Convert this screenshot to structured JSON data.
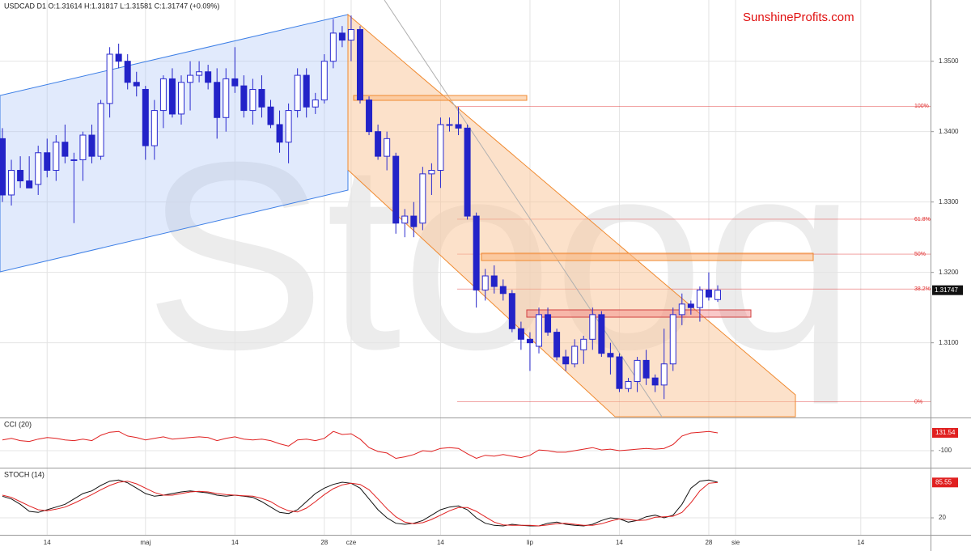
{
  "chart_data": {
    "type": "candlestick",
    "title": "USDCAD  D1  O:1.31614  H:1.31817  L:1.31581  C:1.31747  (+0.09%)",
    "watermark": "Stooq",
    "brand": "SunshineProfits.com",
    "categories": [
      null,
      null,
      null,
      null,
      null,
      "14",
      null,
      null,
      null,
      null,
      null,
      null,
      null,
      null,
      null,
      null,
      "maj",
      null,
      null,
      null,
      null,
      null,
      null,
      null,
      null,
      null,
      "14",
      null,
      null,
      null,
      null,
      null,
      null,
      null,
      null,
      null,
      "28",
      null,
      null,
      "cze",
      null,
      null,
      null,
      null,
      null,
      null,
      null,
      null,
      null,
      "14",
      null,
      null,
      null,
      null,
      null,
      null,
      null,
      null,
      null,
      "lip",
      null,
      null,
      null,
      null,
      null,
      null,
      null,
      null,
      null,
      "14",
      null,
      null,
      null,
      null,
      null,
      null,
      null,
      null,
      null,
      "28",
      null,
      null,
      "sie",
      null,
      null,
      null,
      null,
      null,
      null,
      null,
      null,
      null,
      null,
      null,
      null,
      null,
      "14",
      null,
      null,
      null,
      null,
      null,
      null,
      null
    ],
    "open": [
      1.339,
      1.331,
      1.3345,
      1.333,
      1.3325,
      1.337,
      1.3345,
      1.3385,
      1.336,
      1.336,
      1.3395,
      1.3365,
      1.344,
      1.351,
      1.35,
      1.347,
      1.346,
      1.338,
      1.343,
      1.3475,
      1.3425,
      1.347,
      1.348,
      1.3485,
      1.347,
      1.342,
      1.3475,
      1.3465,
      1.343,
      1.346,
      1.3435,
      1.341,
      1.3385,
      1.343,
      1.348,
      1.3435,
      1.3445,
      1.35,
      1.354,
      1.353,
      1.3545,
      1.3445,
      1.34,
      1.3365,
      1.3365,
      1.327,
      1.328,
      1.327,
      1.334,
      1.3345,
      1.341,
      1.341,
      1.3405,
      1.328,
      1.3175,
      1.3195,
      1.318,
      1.317,
      1.312,
      1.3105,
      1.3095,
      1.314,
      1.3115,
      1.308,
      1.307,
      1.309,
      1.3105,
      1.314,
      1.3085,
      1.308,
      1.3035,
      1.3045,
      1.3075,
      1.305,
      1.304,
      1.307,
      1.314,
      1.3155,
      1.315,
      1.3175,
      1.31614,
      null,
      null,
      null,
      null,
      null,
      null,
      null,
      null,
      null,
      null,
      null,
      null,
      null,
      null,
      null,
      null,
      null,
      null,
      null,
      null,
      null,
      null,
      null
    ],
    "high": [
      1.3405,
      1.336,
      1.3365,
      1.3365,
      1.338,
      1.339,
      1.3395,
      1.341,
      1.337,
      1.34,
      1.341,
      1.3445,
      1.352,
      1.3525,
      1.351,
      1.3485,
      1.3465,
      1.3445,
      1.348,
      1.349,
      1.348,
      1.35,
      1.35,
      1.3495,
      1.349,
      1.349,
      1.352,
      1.348,
      1.3475,
      1.348,
      1.3445,
      1.343,
      1.344,
      1.349,
      1.349,
      1.3455,
      1.351,
      1.356,
      1.355,
      1.3565,
      1.355,
      1.345,
      1.341,
      1.34,
      1.337,
      1.329,
      1.33,
      1.335,
      1.3355,
      1.342,
      1.342,
      1.3435,
      1.341,
      1.3285,
      1.3205,
      1.321,
      1.319,
      1.3175,
      1.313,
      1.3115,
      1.315,
      1.315,
      1.312,
      1.309,
      1.3105,
      1.311,
      1.315,
      1.3145,
      1.31,
      1.3085,
      1.305,
      1.308,
      1.309,
      1.3055,
      1.312,
      1.315,
      1.317,
      1.316,
      1.318,
      1.32,
      1.31817,
      null,
      null,
      null,
      null,
      null,
      null,
      null,
      null,
      null,
      null,
      null,
      null,
      null,
      null,
      null,
      null,
      null,
      null,
      null,
      null,
      null,
      null,
      null
    ],
    "low": [
      1.33,
      1.3295,
      1.332,
      1.332,
      1.331,
      1.3335,
      1.333,
      1.3355,
      1.327,
      1.333,
      1.3355,
      1.336,
      1.342,
      1.349,
      1.346,
      1.345,
      1.336,
      1.336,
      1.3405,
      1.342,
      1.341,
      1.343,
      1.347,
      1.346,
      1.339,
      1.34,
      1.3455,
      1.342,
      1.341,
      1.342,
      1.3405,
      1.337,
      1.3355,
      1.342,
      1.342,
      1.3425,
      1.344,
      1.349,
      1.352,
      1.35,
      1.344,
      1.3395,
      1.336,
      1.3345,
      1.3255,
      1.325,
      1.325,
      1.326,
      1.331,
      1.332,
      1.34,
      1.3395,
      1.3275,
      1.315,
      1.316,
      1.317,
      1.316,
      1.3115,
      1.309,
      1.306,
      1.3085,
      1.311,
      1.3075,
      1.306,
      1.3065,
      1.307,
      1.309,
      1.308,
      1.3055,
      1.303,
      1.303,
      1.303,
      1.304,
      1.303,
      1.302,
      1.306,
      1.3125,
      1.314,
      1.313,
      1.316,
      1.31581,
      null,
      null,
      null,
      null,
      null,
      null,
      null,
      null,
      null,
      null,
      null,
      null,
      null,
      null,
      null,
      null,
      null,
      null,
      null,
      null,
      null,
      null,
      null
    ],
    "close": [
      1.331,
      1.3345,
      1.333,
      1.332,
      1.337,
      1.3345,
      1.3385,
      1.3365,
      1.336,
      1.3395,
      1.3365,
      1.344,
      1.351,
      1.35,
      1.347,
      1.3465,
      1.338,
      1.343,
      1.3475,
      1.3425,
      1.347,
      1.348,
      1.3485,
      1.347,
      1.342,
      1.3475,
      1.3465,
      1.343,
      1.346,
      1.3435,
      1.341,
      1.3385,
      1.343,
      1.348,
      1.3435,
      1.3445,
      1.35,
      1.354,
      1.353,
      1.3545,
      1.3445,
      1.34,
      1.3365,
      1.339,
      1.327,
      1.328,
      1.3265,
      1.334,
      1.3345,
      1.341,
      1.341,
      1.3405,
      1.328,
      1.3175,
      1.3195,
      1.318,
      1.317,
      1.312,
      1.3105,
      1.31,
      1.314,
      1.3115,
      1.308,
      1.307,
      1.3095,
      1.3105,
      1.314,
      1.3085,
      1.308,
      1.3035,
      1.3045,
      1.3075,
      1.305,
      1.304,
      1.307,
      1.314,
      1.3155,
      1.315,
      1.3175,
      1.3165,
      1.31747,
      null,
      null,
      null,
      null,
      null,
      null,
      null,
      null,
      null,
      null,
      null,
      null,
      null,
      null,
      null,
      null,
      null,
      null,
      null,
      null,
      null,
      null,
      null
    ],
    "up_color": "#2b2bd0",
    "down_color": "#2323c8",
    "ylim": [
      1.2995,
      1.3587
    ],
    "yticks": [
      {
        "value": 1.35,
        "label": "1.3500"
      },
      {
        "value": 1.34,
        "label": "1.3400"
      },
      {
        "value": 1.33,
        "label": "1.3300"
      },
      {
        "value": 1.32,
        "label": "1.3200"
      },
      {
        "value": 1.31,
        "label": "1.3100"
      }
    ],
    "grid": true,
    "fib": {
      "high": 1.3436,
      "low": 1.3016,
      "color": "#e03030",
      "levels": [
        {
          "value": 100,
          "label": "100%"
        },
        {
          "value": 61.8,
          "label": "61.8%"
        },
        {
          "value": 50,
          "label": "50%"
        },
        {
          "value": 38.2,
          "label": "38.2%"
        },
        {
          "value": 0,
          "label": "0%"
        }
      ]
    },
    "indicators": [
      {
        "name": "CCI (20)",
        "ylim": [
          -310,
          310
        ],
        "yticks": [
          -100
        ],
        "series": [
          {
            "color": "#e02020",
            "values": [
              40,
              60,
              30,
              20,
              50,
              70,
              60,
              40,
              30,
              50,
              30,
              100,
              140,
              150,
              90,
              70,
              40,
              60,
              80,
              50,
              60,
              70,
              80,
              70,
              30,
              60,
              80,
              50,
              40,
              50,
              30,
              -10,
              -40,
              40,
              50,
              30,
              60,
              150,
              110,
              120,
              50,
              -60,
              -110,
              -130,
              -200,
              -180,
              -150,
              -100,
              -110,
              -70,
              -60,
              -70,
              -140,
              -200,
              -160,
              -170,
              -150,
              -170,
              -190,
              -160,
              -90,
              -100,
              -120,
              -120,
              -100,
              -80,
              -60,
              -90,
              -80,
              -100,
              -90,
              -80,
              -70,
              -80,
              -70,
              -20,
              90,
              130,
              140,
              150,
              131.54
            ]
          }
        ]
      },
      {
        "name": "STOCH (14)",
        "ylim": [
          -10,
          110
        ],
        "yticks": [
          20
        ],
        "series": [
          {
            "color": "#111111",
            "values": [
              60,
              55,
              45,
              32,
              30,
              35,
              40,
              45,
              55,
              65,
              70,
              80,
              88,
              90,
              85,
              75,
              65,
              60,
              62,
              65,
              68,
              70,
              68,
              66,
              62,
              60,
              62,
              60,
              58,
              50,
              40,
              30,
              28,
              35,
              50,
              65,
              75,
              82,
              86,
              84,
              75,
              55,
              35,
              20,
              10,
              8,
              10,
              15,
              25,
              35,
              40,
              42,
              35,
              20,
              10,
              6,
              5,
              8,
              6,
              5,
              5,
              10,
              12,
              8,
              6,
              5,
              8,
              15,
              20,
              18,
              12,
              15,
              22,
              25,
              20,
              25,
              45,
              75,
              88,
              90,
              86
            ]
          },
          {
            "color": "#e02020",
            "values": [
              62,
              58,
              50,
              42,
              35,
              33,
              36,
              40,
              47,
              55,
              63,
              72,
              80,
              86,
              88,
              83,
              75,
              67,
              62,
              62,
              65,
              68,
              69,
              68,
              65,
              63,
              62,
              61,
              60,
              56,
              50,
              40,
              33,
              31,
              38,
              50,
              63,
              74,
              81,
              84,
              82,
              72,
              55,
              37,
              22,
              12,
              9,
              11,
              17,
              25,
              33,
              39,
              39,
              32,
              22,
              12,
              7,
              6,
              6,
              6,
              5,
              7,
              9,
              10,
              8,
              6,
              6,
              9,
              14,
              18,
              17,
              15,
              16,
              21,
              22,
              23,
              30,
              48,
              70,
              84,
              85.55
            ]
          }
        ]
      }
    ]
  }
}
